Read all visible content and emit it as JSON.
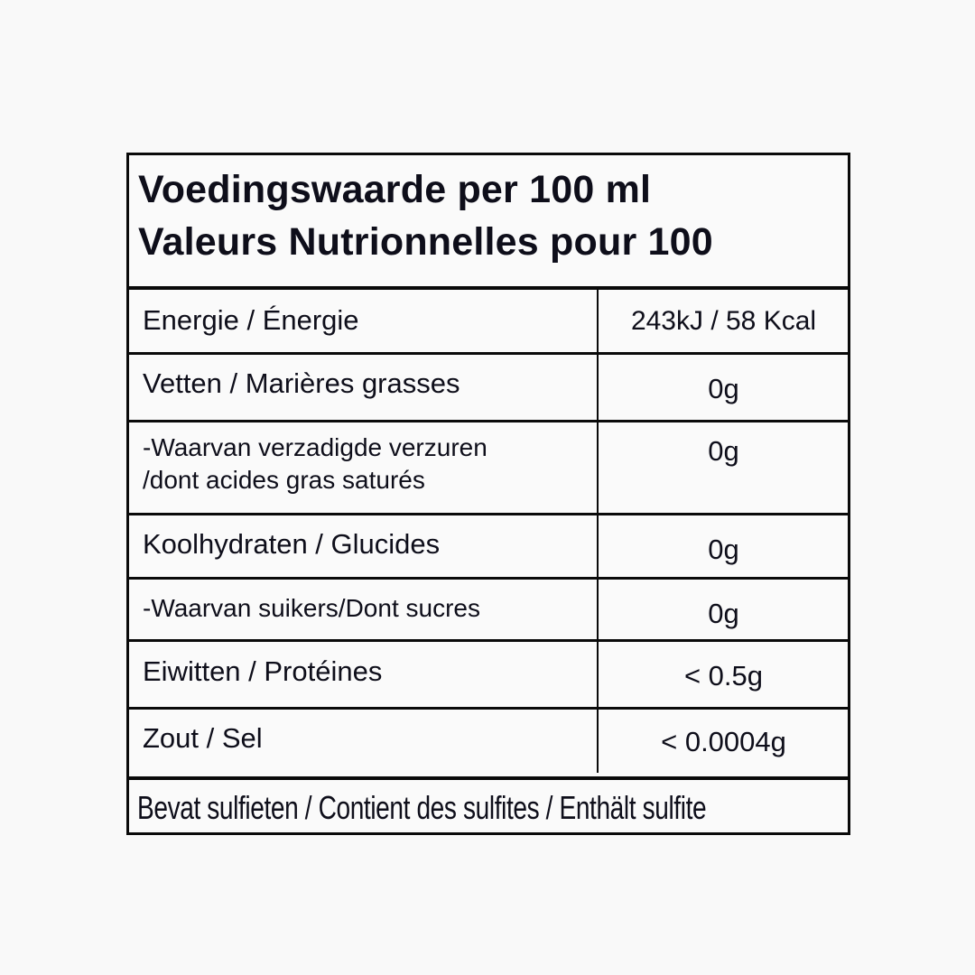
{
  "header": {
    "line1": "Voedingswaarde per 100 ml",
    "line2": "Valeurs Nutrionnelles pour 100"
  },
  "rows": [
    {
      "label": "Energie / Énergie",
      "value": "243kJ / 58 Kcal"
    },
    {
      "label": "Vetten / Marières grasses",
      "value": "0g"
    },
    {
      "label": "-Waarvan verzadigde verzuren\n/dont acides gras saturés",
      "value": "0g"
    },
    {
      "label": "Koolhydraten / Glucides",
      "value": "0g"
    },
    {
      "label": "-Waarvan suikers/Dont sucres",
      "value": "0g"
    },
    {
      "label": "Eiwitten / Protéines",
      "value": "< 0.5g"
    },
    {
      "label": "Zout / Sel",
      "value": "< 0.0004g"
    }
  ],
  "footer": "Bevat sulfieten / Contient des sulfites / Enthält sulfite"
}
